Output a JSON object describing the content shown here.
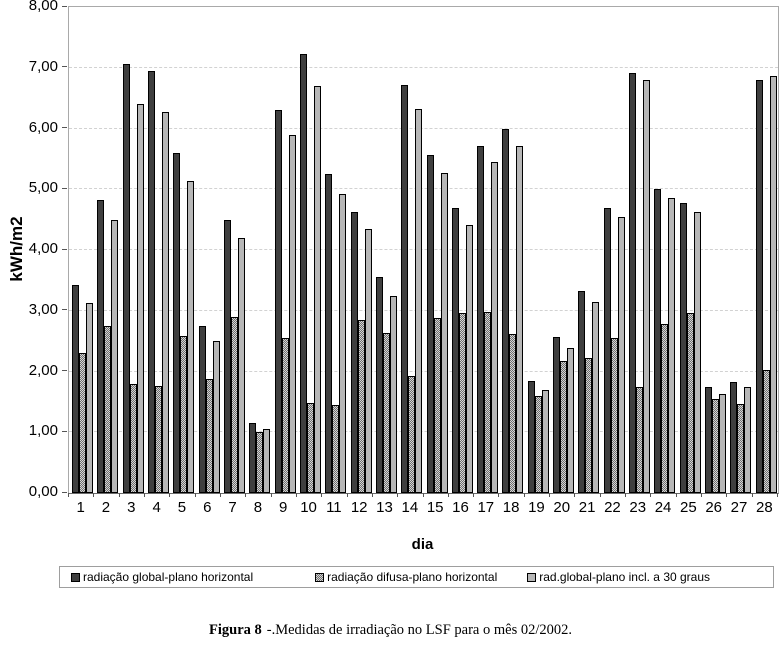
{
  "chart_data": {
    "type": "bar",
    "title": "",
    "xlabel": "dia",
    "ylabel": "kWh/m2",
    "ylim": [
      0,
      8
    ],
    "ytick_step": 1,
    "ytick_labels": [
      "0,00",
      "1,00",
      "2,00",
      "3,00",
      "4,00",
      "5,00",
      "6,00",
      "7,00",
      "8,00"
    ],
    "grid": "horizontal-dashed",
    "legend_position": "bottom",
    "categories": [
      "1",
      "2",
      "3",
      "4",
      "5",
      "6",
      "7",
      "8",
      "9",
      "10",
      "11",
      "12",
      "13",
      "14",
      "15",
      "16",
      "17",
      "18",
      "19",
      "20",
      "21",
      "22",
      "23",
      "24",
      "25",
      "26",
      "27",
      "28"
    ],
    "series": [
      {
        "name": "radiação global-plano horizontal",
        "style": "dark",
        "values": [
          3.42,
          4.82,
          7.07,
          6.95,
          5.6,
          2.75,
          4.5,
          1.15,
          6.3,
          7.23,
          5.25,
          4.62,
          3.55,
          6.71,
          5.57,
          4.7,
          5.72,
          6.0,
          1.85,
          2.57,
          3.32,
          4.7,
          6.92,
          5.0,
          4.77,
          1.75,
          1.83,
          6.8
        ]
      },
      {
        "name": "radiação difusa-plano horizontal",
        "style": "dotted",
        "values": [
          2.3,
          2.75,
          1.8,
          1.77,
          2.58,
          1.88,
          2.9,
          1.0,
          2.55,
          1.48,
          1.45,
          2.85,
          2.63,
          1.92,
          2.88,
          2.97,
          2.98,
          2.62,
          1.6,
          2.18,
          2.23,
          2.55,
          1.75,
          2.78,
          2.97,
          1.55,
          1.47,
          2.02
        ]
      },
      {
        "name": "rad.global-plano incl. a 30 graus",
        "style": "light",
        "values": [
          3.13,
          4.5,
          6.4,
          6.28,
          5.13,
          2.5,
          4.2,
          1.05,
          5.9,
          6.7,
          4.92,
          4.35,
          3.25,
          6.33,
          5.27,
          4.42,
          5.45,
          5.72,
          1.7,
          2.38,
          3.15,
          4.55,
          6.8,
          4.85,
          4.63,
          1.63,
          1.75,
          6.87
        ]
      }
    ]
  },
  "colors": {
    "bar_dark": "#3f3f3f",
    "bar_light": "#b7b7b7",
    "bar_dotted_dot": "#6e6e6e",
    "bar_dotted_bg": "#d4d4d4",
    "gridline": "#d2d2d2",
    "plot_border": "#a9a9a9",
    "axis": "#555555"
  },
  "caption": {
    "label": "Figura 8",
    "text": "-.Medidas de irradiação no LSF para o mês 02/2002."
  }
}
